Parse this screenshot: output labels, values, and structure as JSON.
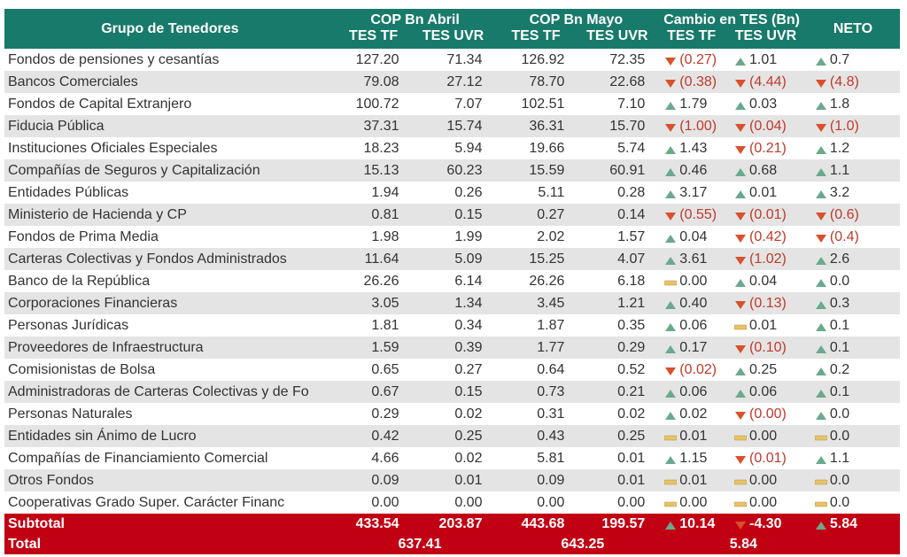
{
  "header": {
    "group_label": "Grupo de Tenedores",
    "april_label": "COP Bn Abril",
    "may_label": "COP Bn Mayo",
    "change_label": "Cambio en TES (Bn)",
    "neto_label": "NETO",
    "tf_label": "TES TF",
    "uvr_label": "TES UVR"
  },
  "rows": [
    {
      "name": "Fondos de pensiones y cesantías",
      "abr_tf": "127.20",
      "abr_uvr": "71.34",
      "may_tf": "126.92",
      "may_uvr": "72.35",
      "chg_tf": "(0.27)",
      "chg_tf_dir": "down",
      "chg_uvr": "1.01",
      "chg_uvr_dir": "up",
      "neto": "0.7",
      "neto_dir": "up"
    },
    {
      "name": "Bancos Comerciales",
      "abr_tf": "79.08",
      "abr_uvr": "27.12",
      "may_tf": "78.70",
      "may_uvr": "22.68",
      "chg_tf": "(0.38)",
      "chg_tf_dir": "down",
      "chg_uvr": "(4.44)",
      "chg_uvr_dir": "down",
      "neto": "(4.8)",
      "neto_dir": "down"
    },
    {
      "name": "Fondos de Capital Extranjero",
      "abr_tf": "100.72",
      "abr_uvr": "7.07",
      "may_tf": "102.51",
      "may_uvr": "7.10",
      "chg_tf": "1.79",
      "chg_tf_dir": "up",
      "chg_uvr": "0.03",
      "chg_uvr_dir": "up",
      "neto": "1.8",
      "neto_dir": "up"
    },
    {
      "name": "Fiducia Pública",
      "abr_tf": "37.31",
      "abr_uvr": "15.74",
      "may_tf": "36.31",
      "may_uvr": "15.70",
      "chg_tf": "(1.00)",
      "chg_tf_dir": "down",
      "chg_uvr": "(0.04)",
      "chg_uvr_dir": "down",
      "neto": "(1.0)",
      "neto_dir": "down"
    },
    {
      "name": "Instituciones Oficiales Especiales",
      "abr_tf": "18.23",
      "abr_uvr": "5.94",
      "may_tf": "19.66",
      "may_uvr": "5.74",
      "chg_tf": "1.43",
      "chg_tf_dir": "up",
      "chg_uvr": "(0.21)",
      "chg_uvr_dir": "down",
      "neto": "1.2",
      "neto_dir": "up"
    },
    {
      "name": "Compañías de Seguros y Capitalización",
      "abr_tf": "15.13",
      "abr_uvr": "60.23",
      "may_tf": "15.59",
      "may_uvr": "60.91",
      "chg_tf": "0.46",
      "chg_tf_dir": "up",
      "chg_uvr": "0.68",
      "chg_uvr_dir": "up",
      "neto": "1.1",
      "neto_dir": "up"
    },
    {
      "name": "Entidades Públicas",
      "abr_tf": "1.94",
      "abr_uvr": "0.26",
      "may_tf": "5.11",
      "may_uvr": "0.28",
      "chg_tf": "3.17",
      "chg_tf_dir": "up",
      "chg_uvr": "0.01",
      "chg_uvr_dir": "up",
      "neto": "3.2",
      "neto_dir": "up"
    },
    {
      "name": "Ministerio de Hacienda y CP",
      "abr_tf": "0.81",
      "abr_uvr": "0.15",
      "may_tf": "0.27",
      "may_uvr": "0.14",
      "chg_tf": "(0.55)",
      "chg_tf_dir": "down",
      "chg_uvr": "(0.01)",
      "chg_uvr_dir": "down",
      "neto": "(0.6)",
      "neto_dir": "down"
    },
    {
      "name": "Fondos de Prima Media",
      "abr_tf": "1.98",
      "abr_uvr": "1.99",
      "may_tf": "2.02",
      "may_uvr": "1.57",
      "chg_tf": "0.04",
      "chg_tf_dir": "up",
      "chg_uvr": "(0.42)",
      "chg_uvr_dir": "down",
      "neto": "(0.4)",
      "neto_dir": "down"
    },
    {
      "name": "Carteras Colectivas y Fondos Administrados",
      "abr_tf": "11.64",
      "abr_uvr": "5.09",
      "may_tf": "15.25",
      "may_uvr": "4.07",
      "chg_tf": "3.61",
      "chg_tf_dir": "up",
      "chg_uvr": "(1.02)",
      "chg_uvr_dir": "down",
      "neto": "2.6",
      "neto_dir": "up"
    },
    {
      "name": "Banco de la República",
      "abr_tf": "26.26",
      "abr_uvr": "6.14",
      "may_tf": "26.26",
      "may_uvr": "6.18",
      "chg_tf": "0.00",
      "chg_tf_dir": "flat",
      "chg_uvr": "0.04",
      "chg_uvr_dir": "up",
      "neto": "0.0",
      "neto_dir": "up"
    },
    {
      "name": "Corporaciones Financieras",
      "abr_tf": "3.05",
      "abr_uvr": "1.34",
      "may_tf": "3.45",
      "may_uvr": "1.21",
      "chg_tf": "0.40",
      "chg_tf_dir": "up",
      "chg_uvr": "(0.13)",
      "chg_uvr_dir": "down",
      "neto": "0.3",
      "neto_dir": "up"
    },
    {
      "name": "Personas Jurídicas",
      "abr_tf": "1.81",
      "abr_uvr": "0.34",
      "may_tf": "1.87",
      "may_uvr": "0.35",
      "chg_tf": "0.06",
      "chg_tf_dir": "up",
      "chg_uvr": "0.01",
      "chg_uvr_dir": "flat",
      "neto": "0.1",
      "neto_dir": "up"
    },
    {
      "name": "Proveedores de Infraestructura",
      "abr_tf": "1.59",
      "abr_uvr": "0.39",
      "may_tf": "1.77",
      "may_uvr": "0.29",
      "chg_tf": "0.17",
      "chg_tf_dir": "up",
      "chg_uvr": "(0.10)",
      "chg_uvr_dir": "down",
      "neto": "0.1",
      "neto_dir": "up"
    },
    {
      "name": "Comisionistas de Bolsa",
      "abr_tf": "0.65",
      "abr_uvr": "0.27",
      "may_tf": "0.64",
      "may_uvr": "0.52",
      "chg_tf": "(0.02)",
      "chg_tf_dir": "down",
      "chg_uvr": "0.25",
      "chg_uvr_dir": "up",
      "neto": "0.2",
      "neto_dir": "up"
    },
    {
      "name": "Administradoras de Carteras Colectivas y de Fo",
      "abr_tf": "0.67",
      "abr_uvr": "0.15",
      "may_tf": "0.73",
      "may_uvr": "0.21",
      "chg_tf": "0.06",
      "chg_tf_dir": "up",
      "chg_uvr": "0.06",
      "chg_uvr_dir": "up",
      "neto": "0.1",
      "neto_dir": "up"
    },
    {
      "name": "Personas Naturales",
      "abr_tf": "0.29",
      "abr_uvr": "0.02",
      "may_tf": "0.31",
      "may_uvr": "0.02",
      "chg_tf": "0.02",
      "chg_tf_dir": "up",
      "chg_uvr": "(0.00)",
      "chg_uvr_dir": "down",
      "neto": "0.0",
      "neto_dir": "up"
    },
    {
      "name": "Entidades sin Ánimo de Lucro",
      "abr_tf": "0.42",
      "abr_uvr": "0.25",
      "may_tf": "0.43",
      "may_uvr": "0.25",
      "chg_tf": "0.01",
      "chg_tf_dir": "flat",
      "chg_uvr": "0.00",
      "chg_uvr_dir": "flat",
      "neto": "0.0",
      "neto_dir": "flat"
    },
    {
      "name": "Compañías de Financiamiento Comercial",
      "abr_tf": "4.66",
      "abr_uvr": "0.02",
      "may_tf": "5.81",
      "may_uvr": "0.01",
      "chg_tf": "1.15",
      "chg_tf_dir": "up",
      "chg_uvr": "(0.01)",
      "chg_uvr_dir": "down",
      "neto": "1.1",
      "neto_dir": "up"
    },
    {
      "name": "Otros Fondos",
      "abr_tf": "0.09",
      "abr_uvr": "0.01",
      "may_tf": "0.09",
      "may_uvr": "0.01",
      "chg_tf": "0.01",
      "chg_tf_dir": "flat",
      "chg_uvr": "0.00",
      "chg_uvr_dir": "flat",
      "neto": "0.0",
      "neto_dir": "flat"
    },
    {
      "name": "Cooperativas Grado Super. Carácter Financ",
      "abr_tf": "0.00",
      "abr_uvr": "0.00",
      "may_tf": "0.00",
      "may_uvr": "0.00",
      "chg_tf": "0.00",
      "chg_tf_dir": "flat",
      "chg_uvr": "0.00",
      "chg_uvr_dir": "flat",
      "neto": "0.0",
      "neto_dir": "flat"
    }
  ],
  "subtotal": {
    "label": "Subtotal",
    "abr_tf": "433.54",
    "abr_uvr": "203.87",
    "may_tf": "443.68",
    "may_uvr": "199.57",
    "chg_tf": "10.14",
    "chg_tf_dir": "up",
    "chg_uvr": "-4.30",
    "chg_uvr_dir": "down",
    "neto": "5.84",
    "neto_dir": "up"
  },
  "total": {
    "label": "Total",
    "abr": "637.41",
    "may": "643.25",
    "chg": "5.84"
  },
  "colors": {
    "header_bg": "#187a6a",
    "up": "#6aaa8a",
    "down": "#d9502b",
    "flat": "#e8c26a",
    "total_bg": "#c20013",
    "neg_text": "#c0392b"
  }
}
